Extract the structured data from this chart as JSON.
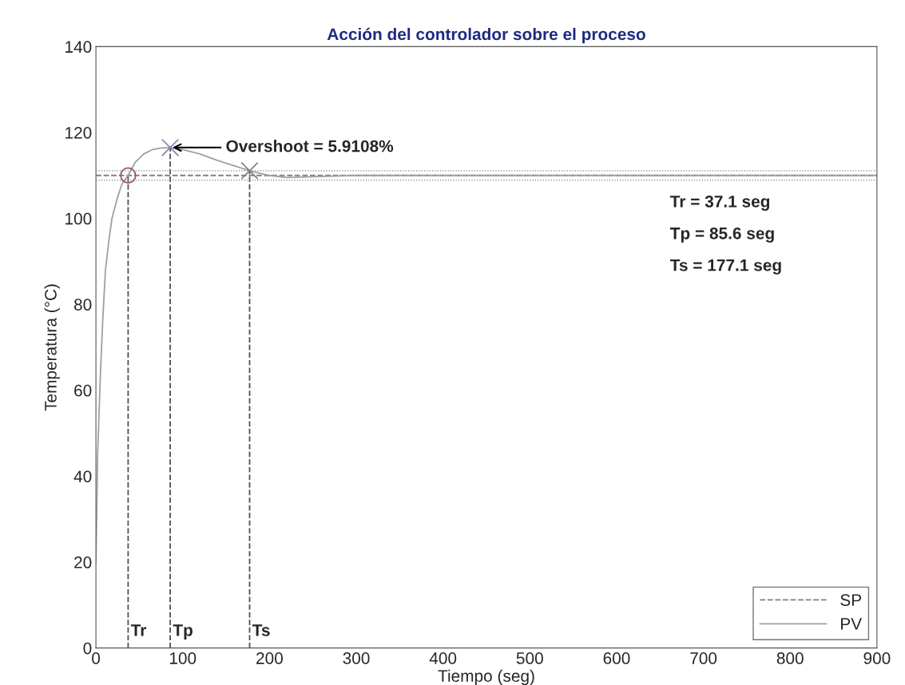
{
  "chart_data": {
    "type": "line",
    "title": "Acción del controlador sobre el proceso",
    "xlabel": "Tiempo (seg)",
    "ylabel": "Temperatura (°C)",
    "xlim": [
      0,
      900
    ],
    "ylim": [
      0,
      140
    ],
    "xticks": [
      0,
      100,
      200,
      300,
      400,
      500,
      600,
      700,
      800,
      900
    ],
    "yticks": [
      0,
      20,
      40,
      60,
      80,
      100,
      120,
      140
    ],
    "grid": false,
    "legend": "bottom right",
    "series": [
      {
        "name": "SP",
        "color": "#808080",
        "line_style": "dashed",
        "x": [
          0,
          900
        ],
        "values": [
          110,
          110
        ]
      },
      {
        "name": "PV",
        "color": "#a0a0a0",
        "line_style": "solid",
        "x": [
          0,
          2,
          5,
          8,
          11,
          15,
          18.5,
          25,
          30,
          37.1,
          45,
          55,
          65,
          75,
          85.6,
          100,
          120,
          140,
          160,
          177.1,
          200,
          220,
          250,
          300,
          400,
          500,
          600,
          700,
          800,
          900
        ],
        "values": [
          20,
          45,
          63,
          77,
          88,
          95,
          100,
          105,
          108,
          110,
          113,
          115,
          116,
          116.4,
          116.5,
          116,
          115,
          113.5,
          112.2,
          111.1,
          110,
          109.5,
          109.7,
          110,
          110,
          110,
          110,
          110,
          110,
          110
        ]
      },
      {
        "type": "line",
        "color": "#505050",
        "line_style": "dashed",
        "x": [
          37.1,
          37.1
        ],
        "values": [
          0,
          110
        ]
      },
      {
        "type": "line",
        "color": "#505050",
        "line_style": "dashed",
        "x": [
          85.6,
          85.6
        ],
        "values": [
          0,
          116.5
        ]
      },
      {
        "type": "line",
        "color": "#505050",
        "line_style": "dashed",
        "x": [
          177.1,
          177.1
        ],
        "values": [
          0,
          111.1
        ]
      },
      {
        "type": "scatter",
        "color": "#a05050",
        "marker": "circle",
        "x": [
          37.1
        ],
        "values": [
          110
        ]
      },
      {
        "type": "scatter",
        "color": "#8080b0",
        "marker": "cross",
        "x": [
          85.6
        ],
        "values": [
          116.5
        ]
      },
      {
        "type": "scatter",
        "color": "#808080",
        "marker": "cross",
        "x": [
          177.1
        ],
        "values": [
          111.1
        ]
      }
    ],
    "ref_lines": [
      {
        "axis": "y",
        "value": 111.1,
        "color": "#808080",
        "line_style": "dotted"
      },
      {
        "axis": "y",
        "value": 108.9,
        "color": "#808080",
        "line_style": "dotted"
      }
    ],
    "annotations": [
      {
        "text": "Overshoot = 5.9108%",
        "x": 85.6,
        "y": 116.5
      },
      {
        "text": "Tr",
        "x": 37.1,
        "y": 2
      },
      {
        "text": "Tp",
        "x": 85.6,
        "y": 2
      },
      {
        "text": "Ts",
        "x": 177.1,
        "y": 2
      },
      "Tr = 37.1 seg",
      "Tp = 85.6 seg",
      "Ts = 177.1 seg"
    ]
  }
}
